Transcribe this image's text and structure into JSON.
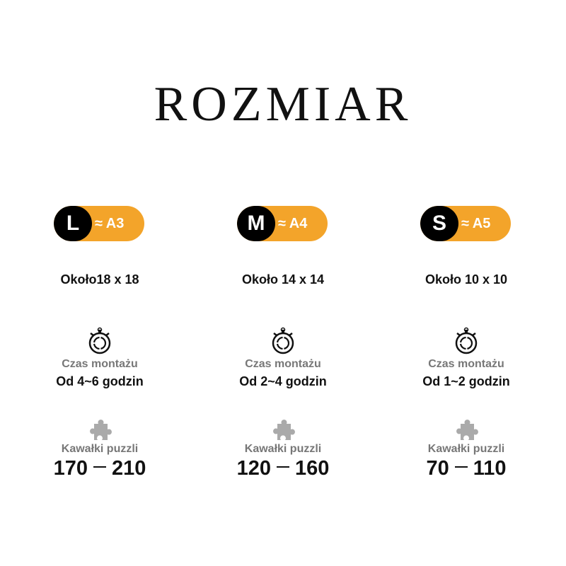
{
  "title": "ROZMIAR",
  "colors": {
    "accent": "#f3a42a",
    "dark": "#000000",
    "label_gray": "#777777",
    "icon_gray": "#aaaaaa"
  },
  "sizes": [
    {
      "size": "L",
      "paper": "≈ A3",
      "dimensions": "Około18 x 18",
      "time_label": "Czas montażu",
      "time_value": "Od 4~6 godzin",
      "pieces_label": "Kawałki puzzli",
      "pieces_min": "170",
      "pieces_max": "210"
    },
    {
      "size": "M",
      "paper": "≈ A4",
      "dimensions": "Około 14 x 14",
      "time_label": "Czas montażu",
      "time_value": "Od 2~4 godzin",
      "pieces_label": "Kawałki puzzli",
      "pieces_min": "120",
      "pieces_max": "160"
    },
    {
      "size": "S",
      "paper": "≈ A5",
      "dimensions": "Około 10 x 10",
      "time_label": "Czas montażu",
      "time_value": "Od 1~2 godzin",
      "pieces_label": "Kawałki puzzli",
      "pieces_min": "70",
      "pieces_max": "110"
    }
  ]
}
